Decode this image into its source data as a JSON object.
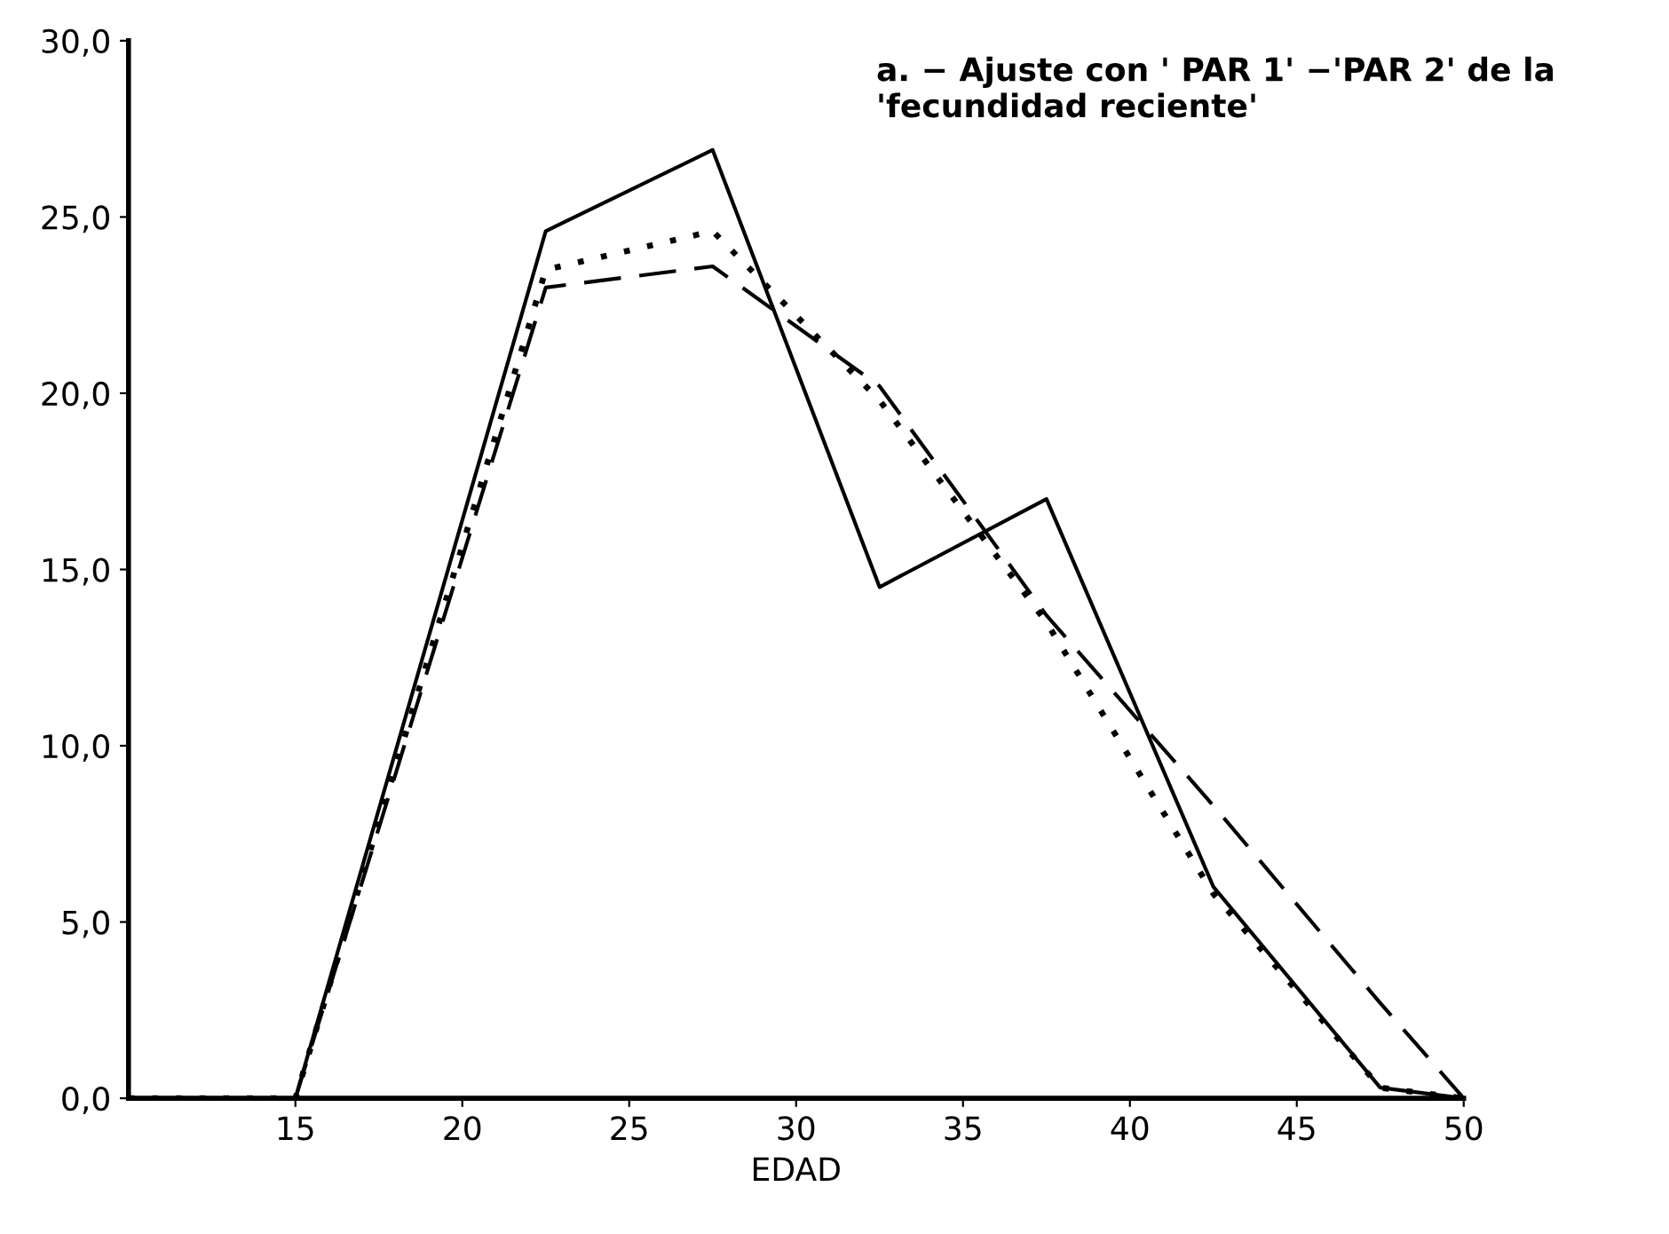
{
  "chart_data": {
    "type": "line",
    "xlabel": "EDAD",
    "annotations": [
      "a. − Ajuste con ' PAR 1' −'PAR 2' de la\n'fecundidad reciente'"
    ],
    "xlim": [
      10,
      50
    ],
    "ylim": [
      0,
      30
    ],
    "xticks": [
      15,
      20,
      25,
      30,
      35,
      40,
      45,
      50
    ],
    "yticks": [
      {
        "value": 0,
        "label": "0,0"
      },
      {
        "value": 5,
        "label": "5,0"
      },
      {
        "value": 10,
        "label": "10,0"
      },
      {
        "value": 15,
        "label": "15,0"
      },
      {
        "value": 20,
        "label": "20,0"
      },
      {
        "value": 25,
        "label": "25,0"
      },
      {
        "value": 30,
        "label": "30,0"
      }
    ],
    "grid": false,
    "marker": "none",
    "series": [
      {
        "color": "#000000",
        "line_style": "solid",
        "x": [
          10,
          15,
          22.5,
          27.5,
          32.5,
          37.5,
          42.5,
          47.5,
          50
        ],
        "values": [
          0,
          0,
          24.6,
          26.9,
          14.5,
          17.0,
          6.0,
          0.3,
          0
        ]
      },
      {
        "color": "#000000",
        "line_style": "dotted",
        "x": [
          10,
          15,
          22.5,
          27.5,
          32.5,
          37.5,
          42.5,
          47.5,
          50
        ],
        "values": [
          0,
          0,
          23.5,
          24.6,
          19.8,
          13.5,
          5.8,
          0.3,
          0
        ]
      },
      {
        "color": "#000000",
        "line_style": "dashed",
        "x": [
          10,
          15,
          22.5,
          27.5,
          32.5,
          37.5,
          42.5,
          47.5,
          50
        ],
        "values": [
          0,
          0,
          23.0,
          23.6,
          20.2,
          13.7,
          8.3,
          2.7,
          0
        ]
      }
    ]
  }
}
